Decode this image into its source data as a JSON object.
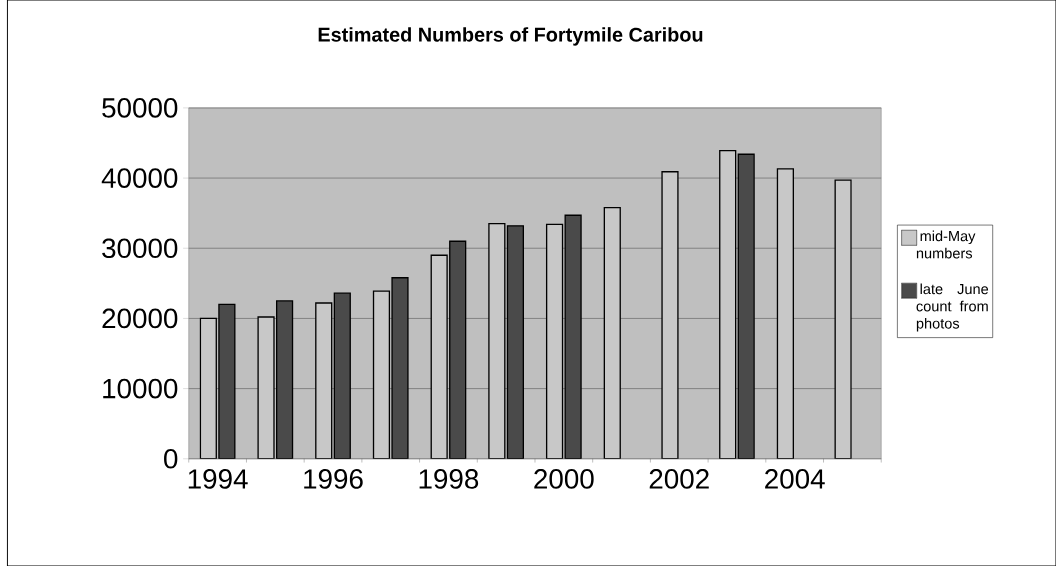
{
  "chart_data": {
    "type": "bar",
    "title": "Estimated Numbers of Fortymile Caribou",
    "categories": [
      "1994",
      null,
      "1996",
      null,
      "1998",
      null,
      "2000",
      null,
      "2002",
      null,
      "2004",
      null
    ],
    "series": [
      {
        "name": "mid-May numbers",
        "color": "#c8c8c8",
        "values": [
          20000,
          20200,
          22200,
          23900,
          29000,
          33500,
          33400,
          35800,
          40900,
          43900,
          41300,
          39700
        ]
      },
      {
        "name": "late June count from photos",
        "color": "#4a4a4a",
        "values": [
          22000,
          22500,
          23600,
          25800,
          31000,
          33200,
          34700,
          null,
          null,
          43400,
          null,
          null
        ]
      }
    ],
    "ylim": [
      0,
      50000
    ],
    "yticks": [
      0,
      10000,
      20000,
      30000,
      40000,
      50000
    ],
    "grid": "y",
    "legend": "right"
  }
}
